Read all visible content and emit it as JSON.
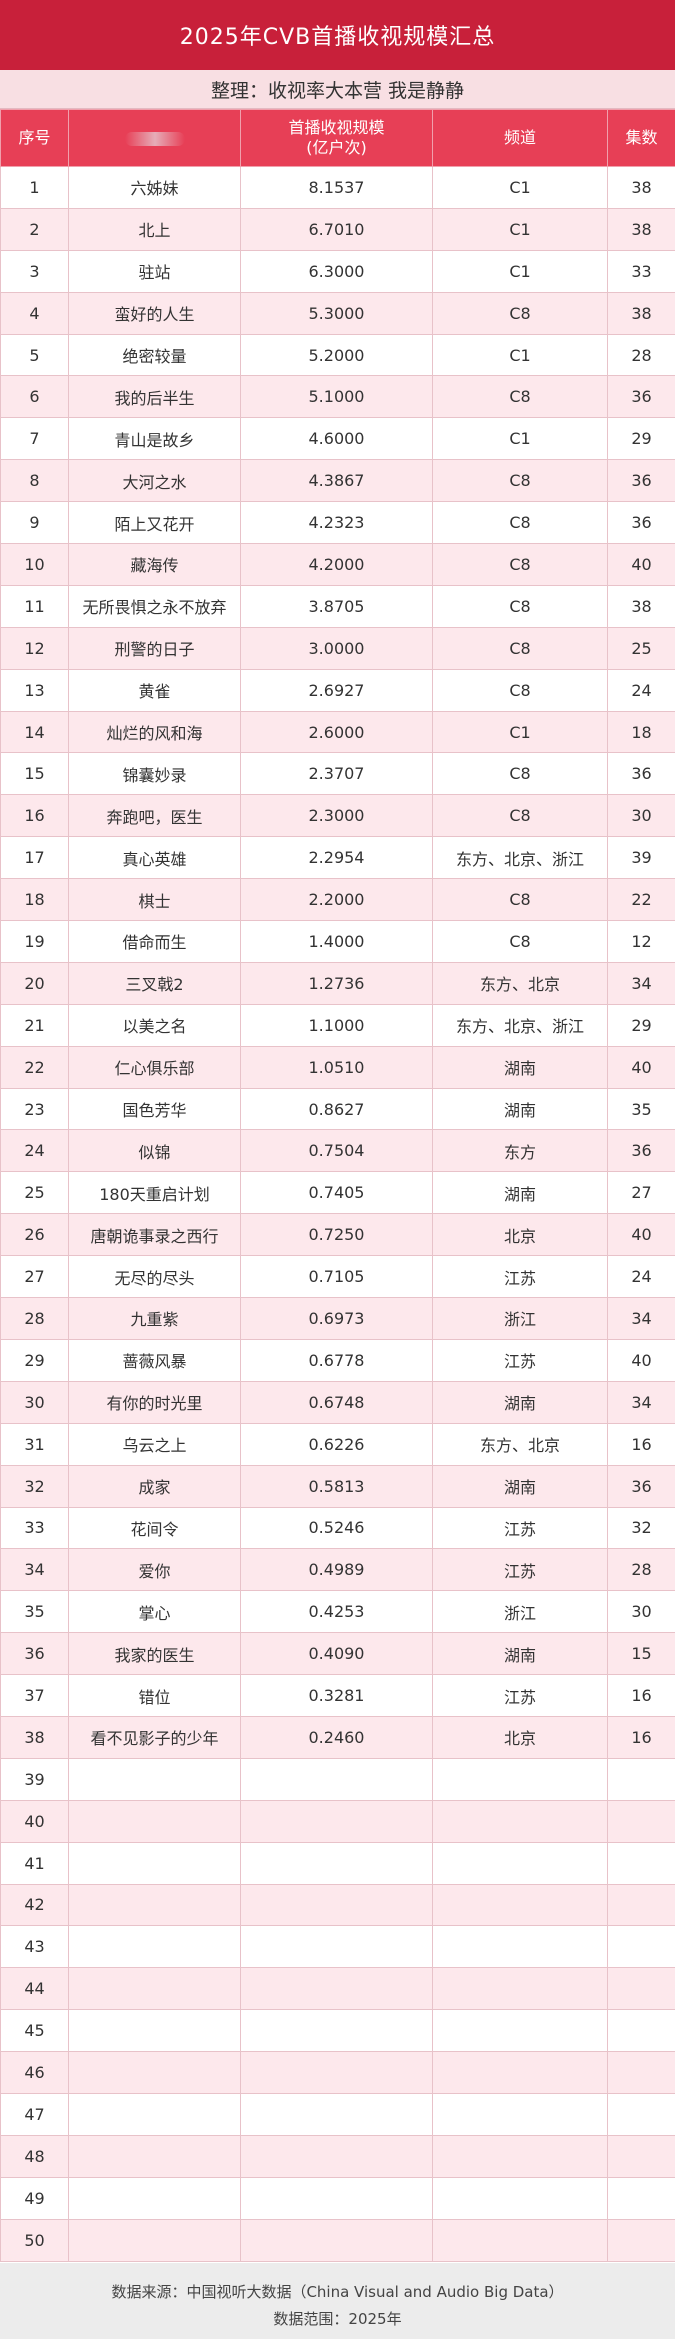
{
  "title": "2025年CVB首播收视规模汇总",
  "subtitle": "整理：收视率大本营   我是静静",
  "header": {
    "rank": "序号",
    "rating_line1": "首播收视规模",
    "rating_line2": "(亿户次)",
    "channel": "频道",
    "episodes": "集数"
  },
  "rows": [
    {
      "rank": "1",
      "title": "六姊妹",
      "rating": "8.1537",
      "channel": "C1",
      "episodes": "38"
    },
    {
      "rank": "2",
      "title": "北上",
      "rating": "6.7010",
      "channel": "C1",
      "episodes": "38"
    },
    {
      "rank": "3",
      "title": "驻站",
      "rating": "6.3000",
      "channel": "C1",
      "episodes": "33"
    },
    {
      "rank": "4",
      "title": "蛮好的人生",
      "rating": "5.3000",
      "channel": "C8",
      "episodes": "38"
    },
    {
      "rank": "5",
      "title": "绝密较量",
      "rating": "5.2000",
      "channel": "C1",
      "episodes": "28"
    },
    {
      "rank": "6",
      "title": "我的后半生",
      "rating": "5.1000",
      "channel": "C8",
      "episodes": "36"
    },
    {
      "rank": "7",
      "title": "青山是故乡",
      "rating": "4.6000",
      "channel": "C1",
      "episodes": "29"
    },
    {
      "rank": "8",
      "title": "大河之水",
      "rating": "4.3867",
      "channel": "C8",
      "episodes": "36"
    },
    {
      "rank": "9",
      "title": "陌上又花开",
      "rating": "4.2323",
      "channel": "C8",
      "episodes": "36"
    },
    {
      "rank": "10",
      "title": "藏海传",
      "rating": "4.2000",
      "channel": "C8",
      "episodes": "40"
    },
    {
      "rank": "11",
      "title": "无所畏惧之永不放弃",
      "rating": "3.8705",
      "channel": "C8",
      "episodes": "38"
    },
    {
      "rank": "12",
      "title": "刑警的日子",
      "rating": "3.0000",
      "channel": "C8",
      "episodes": "25"
    },
    {
      "rank": "13",
      "title": "黄雀",
      "rating": "2.6927",
      "channel": "C8",
      "episodes": "24"
    },
    {
      "rank": "14",
      "title": "灿烂的风和海",
      "rating": "2.6000",
      "channel": "C1",
      "episodes": "18"
    },
    {
      "rank": "15",
      "title": "锦囊妙录",
      "rating": "2.3707",
      "channel": "C8",
      "episodes": "36"
    },
    {
      "rank": "16",
      "title": "奔跑吧，医生",
      "rating": "2.3000",
      "channel": "C8",
      "episodes": "30"
    },
    {
      "rank": "17",
      "title": "真心英雄",
      "rating": "2.2954",
      "channel": "东方、北京、浙江",
      "episodes": "39"
    },
    {
      "rank": "18",
      "title": "棋士",
      "rating": "2.2000",
      "channel": "C8",
      "episodes": "22"
    },
    {
      "rank": "19",
      "title": "借命而生",
      "rating": "1.4000",
      "channel": "C8",
      "episodes": "12"
    },
    {
      "rank": "20",
      "title": "三叉戟2",
      "rating": "1.2736",
      "channel": "东方、北京",
      "episodes": "34"
    },
    {
      "rank": "21",
      "title": "以美之名",
      "rating": "1.1000",
      "channel": "东方、北京、浙江",
      "episodes": "29"
    },
    {
      "rank": "22",
      "title": "仁心俱乐部",
      "rating": "1.0510",
      "channel": "湖南",
      "episodes": "40"
    },
    {
      "rank": "23",
      "title": "国色芳华",
      "rating": "0.8627",
      "channel": "湖南",
      "episodes": "35"
    },
    {
      "rank": "24",
      "title": "似锦",
      "rating": "0.7504",
      "channel": "东方",
      "episodes": "36"
    },
    {
      "rank": "25",
      "title": "180天重启计划",
      "rating": "0.7405",
      "channel": "湖南",
      "episodes": "27"
    },
    {
      "rank": "26",
      "title": "唐朝诡事录之西行",
      "rating": "0.7250",
      "channel": "北京",
      "episodes": "40"
    },
    {
      "rank": "27",
      "title": "无尽的尽头",
      "rating": "0.7105",
      "channel": "江苏",
      "episodes": "24"
    },
    {
      "rank": "28",
      "title": "九重紫",
      "rating": "0.6973",
      "channel": "浙江",
      "episodes": "34"
    },
    {
      "rank": "29",
      "title": "蔷薇风暴",
      "rating": "0.6778",
      "channel": "江苏",
      "episodes": "40"
    },
    {
      "rank": "30",
      "title": "有你的时光里",
      "rating": "0.6748",
      "channel": "湖南",
      "episodes": "34"
    },
    {
      "rank": "31",
      "title": "乌云之上",
      "rating": "0.6226",
      "channel": "东方、北京",
      "episodes": "16"
    },
    {
      "rank": "32",
      "title": "成家",
      "rating": "0.5813",
      "channel": "湖南",
      "episodes": "36"
    },
    {
      "rank": "33",
      "title": "花间令",
      "rating": "0.5246",
      "channel": "江苏",
      "episodes": "32"
    },
    {
      "rank": "34",
      "title": "爱你",
      "rating": "0.4989",
      "channel": "江苏",
      "episodes": "28"
    },
    {
      "rank": "35",
      "title": "掌心",
      "rating": "0.4253",
      "channel": "浙江",
      "episodes": "30"
    },
    {
      "rank": "36",
      "title": "我家的医生",
      "rating": "0.4090",
      "channel": "湖南",
      "episodes": "15"
    },
    {
      "rank": "37",
      "title": "错位",
      "rating": "0.3281",
      "channel": "江苏",
      "episodes": "16"
    },
    {
      "rank": "38",
      "title": "看不见影子的少年",
      "rating": "0.2460",
      "channel": "北京",
      "episodes": "16"
    },
    {
      "rank": "39",
      "title": "",
      "rating": "",
      "channel": "",
      "episodes": ""
    },
    {
      "rank": "40",
      "title": "",
      "rating": "",
      "channel": "",
      "episodes": ""
    },
    {
      "rank": "41",
      "title": "",
      "rating": "",
      "channel": "",
      "episodes": ""
    },
    {
      "rank": "42",
      "title": "",
      "rating": "",
      "channel": "",
      "episodes": ""
    },
    {
      "rank": "43",
      "title": "",
      "rating": "",
      "channel": "",
      "episodes": ""
    },
    {
      "rank": "44",
      "title": "",
      "rating": "",
      "channel": "",
      "episodes": ""
    },
    {
      "rank": "45",
      "title": "",
      "rating": "",
      "channel": "",
      "episodes": ""
    },
    {
      "rank": "46",
      "title": "",
      "rating": "",
      "channel": "",
      "episodes": ""
    },
    {
      "rank": "47",
      "title": "",
      "rating": "",
      "channel": "",
      "episodes": ""
    },
    {
      "rank": "48",
      "title": "",
      "rating": "",
      "channel": "",
      "episodes": ""
    },
    {
      "rank": "49",
      "title": "",
      "rating": "",
      "channel": "",
      "episodes": ""
    },
    {
      "rank": "50",
      "title": "",
      "rating": "",
      "channel": "",
      "episodes": ""
    }
  ],
  "footer": {
    "source": "数据来源：中国视听大数据（China Visual and Audio Big Data）",
    "scope": "数据范围：2025年"
  }
}
